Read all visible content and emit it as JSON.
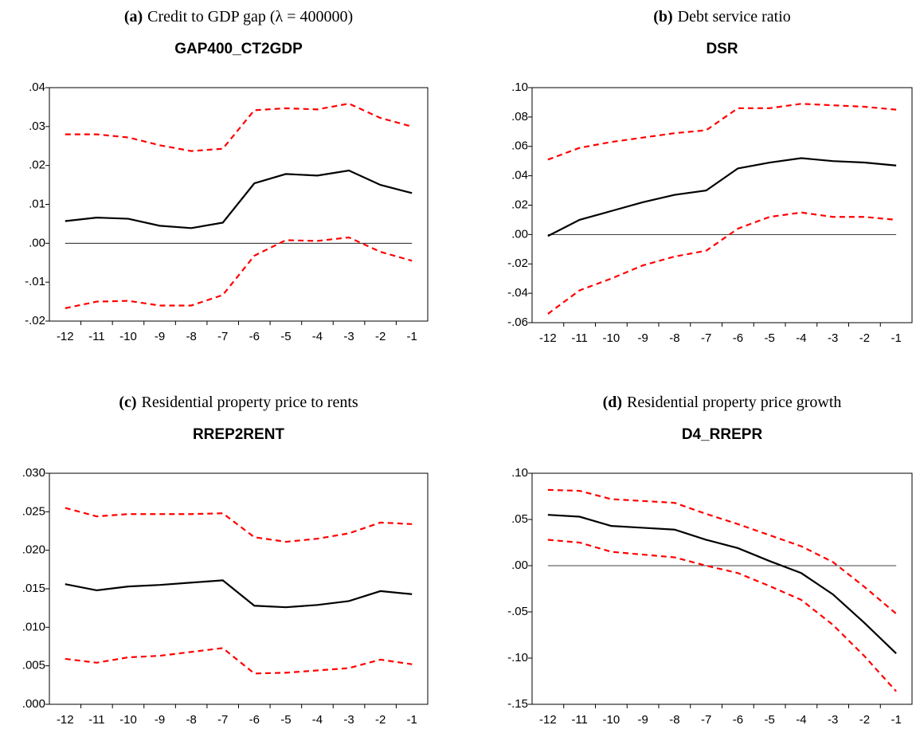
{
  "chart_data": [
    {
      "type": "line",
      "caption_label": "(a)",
      "caption": "Credit to GDP gap (λ = 400000)",
      "title": "GAP400_CT2GDP",
      "categories": [
        "-12",
        "-11",
        "-10",
        "-9",
        "-8",
        "-7",
        "-6",
        "-5",
        "-4",
        "-3",
        "-2",
        "-1"
      ],
      "ylim": [
        -0.02,
        0.04
      ],
      "yticks": [
        {
          "value": -0.02,
          "label": "-.02"
        },
        {
          "value": -0.01,
          "label": "-.01"
        },
        {
          "value": 0,
          "label": ".00"
        },
        {
          "value": 0.01,
          "label": ".01"
        },
        {
          "value": 0.02,
          "label": ".02"
        },
        {
          "value": 0.03,
          "label": ".03"
        },
        {
          "value": 0.04,
          "label": ".04"
        }
      ],
      "hline": 0,
      "series": [
        {
          "color": "#ff0000",
          "dashed": true,
          "values": [
            0.028,
            0.028,
            0.0272,
            0.0252,
            0.0237,
            0.0243,
            0.0342,
            0.0347,
            0.0344,
            0.0359,
            0.0322,
            0.03
          ]
        },
        {
          "color": "#000000",
          "dashed": false,
          "values": [
            0.0057,
            0.0066,
            0.0063,
            0.0045,
            0.0039,
            0.0053,
            0.0154,
            0.0178,
            0.0174,
            0.0187,
            0.015,
            0.0129
          ]
        },
        {
          "color": "#ff0000",
          "dashed": true,
          "values": [
            -0.0167,
            -0.015,
            -0.0148,
            -0.016,
            -0.016,
            -0.0133,
            -0.0032,
            0.0008,
            0.0006,
            0.0015,
            -0.0022,
            -0.0045
          ]
        }
      ]
    },
    {
      "type": "line",
      "caption_label": "(b)",
      "caption": "Debt service ratio",
      "title": "DSR",
      "categories": [
        "-12",
        "-11",
        "-10",
        "-9",
        "-8",
        "-7",
        "-6",
        "-5",
        "-4",
        "-3",
        "-2",
        "-1"
      ],
      "ylim": [
        -0.06,
        0.1
      ],
      "yticks": [
        {
          "value": -0.06,
          "label": "-.06"
        },
        {
          "value": -0.04,
          "label": "-.04"
        },
        {
          "value": -0.02,
          "label": "-.02"
        },
        {
          "value": 0,
          "label": ".00"
        },
        {
          "value": 0.02,
          "label": ".02"
        },
        {
          "value": 0.04,
          "label": ".04"
        },
        {
          "value": 0.06,
          "label": ".06"
        },
        {
          "value": 0.08,
          "label": ".08"
        },
        {
          "value": 0.1,
          "label": ".10"
        }
      ],
      "hline": 0,
      "series": [
        {
          "color": "#ff0000",
          "dashed": true,
          "values": [
            0.051,
            0.059,
            0.063,
            0.066,
            0.069,
            0.071,
            0.086,
            0.086,
            0.089,
            0.088,
            0.087,
            0.085
          ]
        },
        {
          "color": "#000000",
          "dashed": false,
          "values": [
            -0.001,
            0.01,
            0.016,
            0.022,
            0.027,
            0.03,
            0.045,
            0.049,
            0.052,
            0.05,
            0.049,
            0.047
          ]
        },
        {
          "color": "#ff0000",
          "dashed": true,
          "values": [
            -0.054,
            -0.038,
            -0.03,
            -0.021,
            -0.015,
            -0.011,
            0.004,
            0.012,
            0.015,
            0.012,
            0.012,
            0.01
          ]
        }
      ]
    },
    {
      "type": "line",
      "caption_label": "(c)",
      "caption": "Residential property price to rents",
      "title": "RREP2RENT",
      "categories": [
        "-12",
        "-11",
        "-10",
        "-9",
        "-8",
        "-7",
        "-6",
        "-5",
        "-4",
        "-3",
        "-2",
        "-1"
      ],
      "ylim": [
        0,
        0.03
      ],
      "yticks": [
        {
          "value": 0,
          "label": ".000"
        },
        {
          "value": 0.005,
          "label": ".005"
        },
        {
          "value": 0.01,
          "label": ".010"
        },
        {
          "value": 0.015,
          "label": ".015"
        },
        {
          "value": 0.02,
          "label": ".020"
        },
        {
          "value": 0.025,
          "label": ".025"
        },
        {
          "value": 0.03,
          "label": ".030"
        }
      ],
      "series": [
        {
          "color": "#ff0000",
          "dashed": true,
          "values": [
            0.0255,
            0.0244,
            0.0247,
            0.0247,
            0.0247,
            0.0248,
            0.0217,
            0.0211,
            0.0215,
            0.0222,
            0.0236,
            0.0234
          ]
        },
        {
          "color": "#000000",
          "dashed": false,
          "values": [
            0.0156,
            0.0148,
            0.0153,
            0.0155,
            0.0158,
            0.0161,
            0.0128,
            0.0126,
            0.0129,
            0.0134,
            0.0147,
            0.0143
          ]
        },
        {
          "color": "#ff0000",
          "dashed": true,
          "values": [
            0.0059,
            0.0054,
            0.0061,
            0.0063,
            0.0068,
            0.0073,
            0.004,
            0.0041,
            0.0044,
            0.0047,
            0.0058,
            0.0052
          ]
        }
      ]
    },
    {
      "type": "line",
      "caption_label": "(d)",
      "caption": "Residential property price growth",
      "title": "D4_RREPR",
      "categories": [
        "-12",
        "-11",
        "-10",
        "-9",
        "-8",
        "-7",
        "-6",
        "-5",
        "-4",
        "-3",
        "-2",
        "-1"
      ],
      "ylim": [
        -0.15,
        0.1
      ],
      "yticks": [
        {
          "value": -0.15,
          "label": "-.15"
        },
        {
          "value": -0.1,
          "label": "-.10"
        },
        {
          "value": -0.05,
          "label": "-.05"
        },
        {
          "value": 0,
          "label": ".00"
        },
        {
          "value": 0.05,
          "label": ".05"
        },
        {
          "value": 0.1,
          "label": ".10"
        }
      ],
      "hline": 0,
      "series": [
        {
          "color": "#ff0000",
          "dashed": true,
          "values": [
            0.082,
            0.081,
            0.072,
            0.07,
            0.068,
            0.056,
            0.045,
            0.033,
            0.021,
            0.004,
            -0.023,
            -0.052
          ]
        },
        {
          "color": "#000000",
          "dashed": false,
          "values": [
            0.055,
            0.053,
            0.043,
            0.041,
            0.039,
            0.028,
            0.019,
            0.005,
            -0.008,
            -0.031,
            -0.062,
            -0.095
          ]
        },
        {
          "color": "#ff0000",
          "dashed": true,
          "values": [
            0.028,
            0.025,
            0.015,
            0.012,
            0.009,
            0.0,
            -0.008,
            -0.022,
            -0.037,
            -0.064,
            -0.098,
            -0.136
          ]
        }
      ]
    }
  ]
}
